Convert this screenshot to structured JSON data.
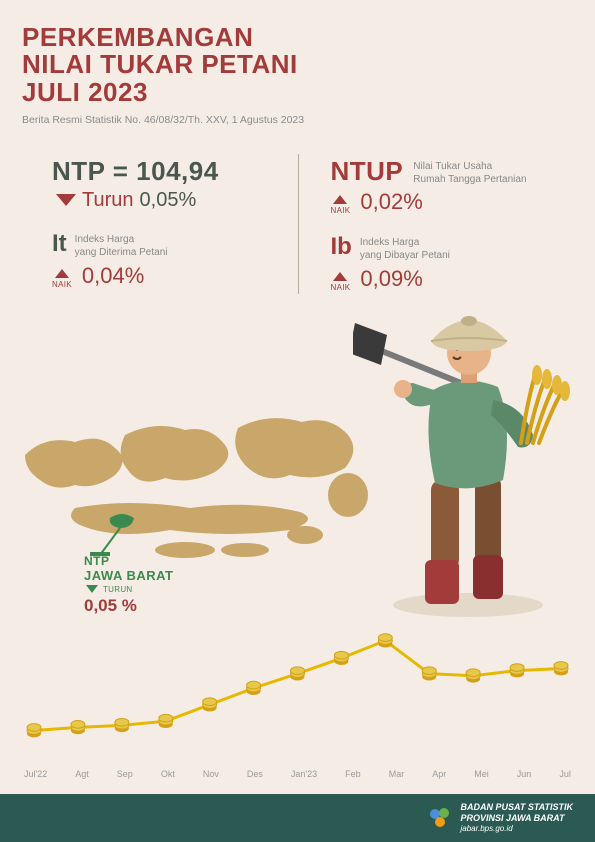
{
  "header": {
    "title_l1": "PERKEMBANGAN",
    "title_l2": "NILAI TUKAR PETANI",
    "title_l3": "JULI 2023",
    "subtitle": "Berita Resmi Statistik No. 46/08/32/Th. XXV, 1 Agustus 2023"
  },
  "stats": {
    "ntp_label": "NTP = 104,94",
    "ntp_direction": "Turun",
    "ntp_pct": "0,05%",
    "it": {
      "symbol": "It",
      "desc1": "Indeks Harga",
      "desc2": "yang Diterima Petani",
      "naik_label": "NAIK",
      "pct": "0,04%"
    },
    "ntup": {
      "symbol": "NTUP",
      "desc1": "Nilai Tukar Usaha",
      "desc2": "Rumah Tangga Pertanian",
      "naik_label": "NAIK",
      "pct": "0,02%"
    },
    "ib": {
      "symbol": "Ib",
      "desc1": "Indeks Harga",
      "desc2": "yang Dibayar Petani",
      "naik_label": "NAIK",
      "pct": "0,09%"
    }
  },
  "jb": {
    "ntp_label": "NTP",
    "region": "JAWA BARAT",
    "direction": "TURUN",
    "pct": "0,05 %"
  },
  "chart": {
    "type": "line",
    "months": [
      "Jul'22",
      "Agt",
      "Sep",
      "Okt",
      "Nov",
      "Des",
      "Jan'23",
      "Feb",
      "Mar",
      "Apr",
      "Mei",
      "Jun",
      "Jul"
    ],
    "values": [
      15,
      18,
      20,
      24,
      40,
      56,
      70,
      85,
      102,
      70,
      68,
      73,
      75
    ],
    "ylim": [
      0,
      120
    ],
    "line_color": "#e6b800",
    "line_width": 3,
    "marker_fill": "#e6c84a",
    "marker_stroke": "#d4a017",
    "marker_radius": 7,
    "label_fontsize": 9,
    "label_color": "#9a9a9a",
    "background_color": "#f5ede5",
    "grid": false
  },
  "map": {
    "land_color": "#c9a76a",
    "highlight_color": "#3a8a4f",
    "callout_line_color": "#3a8a4f"
  },
  "farmer_colors": {
    "hat": "#d9c9a3",
    "skin": "#e8b388",
    "shirt": "#6b9a7a",
    "pants": "#8a5a3a",
    "boots": "#a33b3b",
    "hoe_handle": "#7a7a7a",
    "hoe_head": "#4a4a4a",
    "wheat": "#d4a017"
  },
  "footer": {
    "l1": "BADAN PUSAT STATISTIK",
    "l2": "PROVINSI JAWA BARAT",
    "l3": "jabar.bps.go.id",
    "bg": "#2a5a51"
  },
  "theme": {
    "bg": "#f5ede5",
    "primary_red": "#a33b3b",
    "primary_green_dark": "#4a574e",
    "primary_green": "#3a8a4f",
    "text_gray": "#888888"
  }
}
